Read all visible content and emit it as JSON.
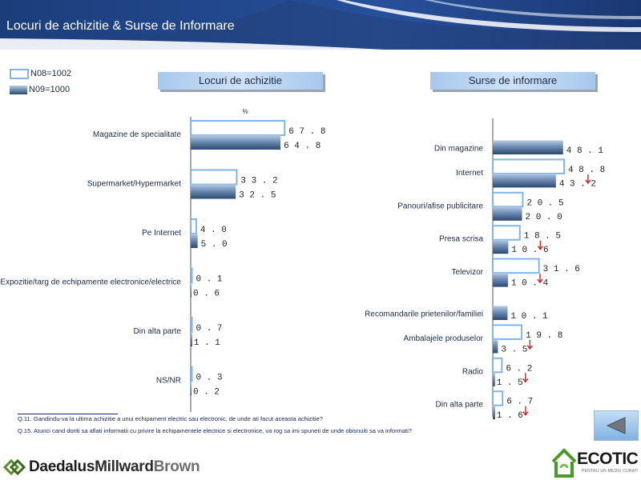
{
  "header": {
    "title": "Locuri de achizitie & Surse de Informare"
  },
  "legend": {
    "items": [
      {
        "label": "N08=1002"
      },
      {
        "label": "N09=1000"
      }
    ]
  },
  "colors": {
    "outline_2008": "#7fb5ea",
    "bar_2009_light": "#b6cbe3",
    "bar_2009_dark": "#2b4a72",
    "decrease_arrow": "#d81e1e",
    "axis": "#555555",
    "text": "#1a2a4a"
  },
  "chart_data": [
    {
      "type": "bar",
      "orientation": "horizontal",
      "title": "Locuri de achizitie",
      "unit": "%",
      "categories": [
        "Magazine de specialitate",
        "Supermarket/Hypermarket",
        "Pe Internet",
        "Expozitie/targ de echipamente electronice/electrice",
        "Din alta parte",
        "NS/NR"
      ],
      "series": [
        {
          "name": "N08=1002",
          "values": [
            67.8,
            33.2,
            4.0,
            0.1,
            0.7,
            0.3
          ]
        },
        {
          "name": "N09=1000",
          "values": [
            64.8,
            32.5,
            5.0,
            0.6,
            1.1,
            0.2
          ]
        }
      ]
    },
    {
      "type": "bar",
      "orientation": "horizontal",
      "title": "Surse de informare",
      "categories": [
        "Din magazine",
        "Internet",
        "Panouri/afise publicitare",
        "Presa scrisa",
        "Televizor",
        "Recomandarile prietenilor/familiei",
        "Ambalajele produselor",
        "Radio",
        "Din alta parte"
      ],
      "series": [
        {
          "name": "N08=1002",
          "values": [
            null,
            48.8,
            20.5,
            18.5,
            31.6,
            null,
            19.8,
            6.2,
            6.7
          ]
        },
        {
          "name": "N09=1000",
          "values": [
            48.1,
            43.2,
            20.0,
            10.6,
            10.4,
            10.1,
            3.5,
            1.5,
            1.6
          ],
          "decrease": [
            false,
            true,
            false,
            true,
            true,
            false,
            true,
            true,
            true
          ]
        }
      ]
    }
  ],
  "footnotes": [
    "Q.11. Gandindu-va la ultima achizitie a unui echipament electric sau electronic, de unde ati facut aceasta achizitie?",
    "Q.15. Atunci cand doriti sa aflati informatii cu privire la echipamentele electrice si electronice, va rog sa imi spuneti de unde obisnuiti sa va informati?"
  ],
  "logos": {
    "left": {
      "part1": "Daedalus",
      "part2": "Millward",
      "part3": "Brown"
    },
    "right": {
      "name": "ECOTIC",
      "tagline": "PENTRU UN MEDIU CURAT!"
    }
  },
  "nav": {
    "back_icon": "left-triangle-icon"
  }
}
